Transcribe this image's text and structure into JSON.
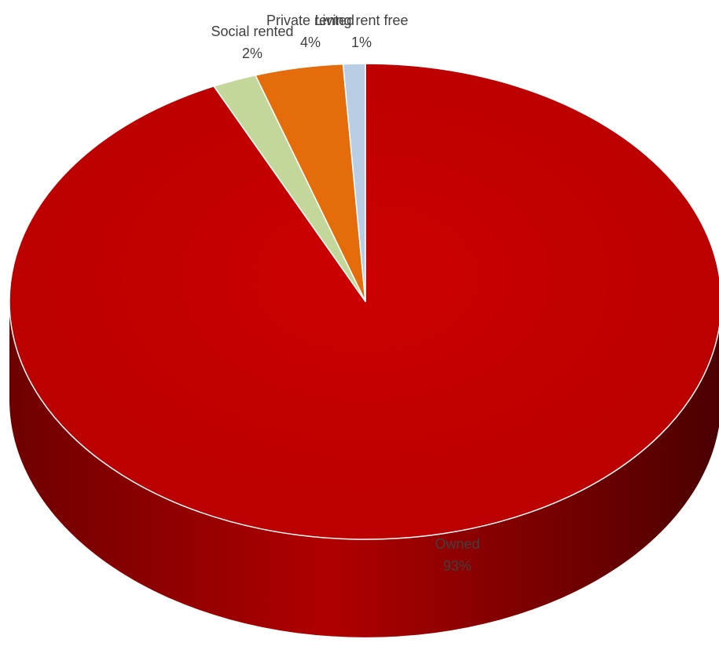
{
  "chart_data": {
    "type": "pie",
    "categories": [
      "Owned",
      "Social rented",
      "Private rented",
      "Living rent free"
    ],
    "values": [
      93,
      2,
      4,
      1
    ],
    "labels": [
      "93%",
      "2%",
      "4%",
      "1%"
    ],
    "colors": [
      "#C00000",
      "#C4D79B",
      "#E46C0A",
      "#B9CDE5"
    ],
    "side_colors": [
      "#7A0000",
      "#8FA06A",
      "#A24C06",
      "#8495AB"
    ],
    "style": "3d",
    "legend": "none"
  }
}
